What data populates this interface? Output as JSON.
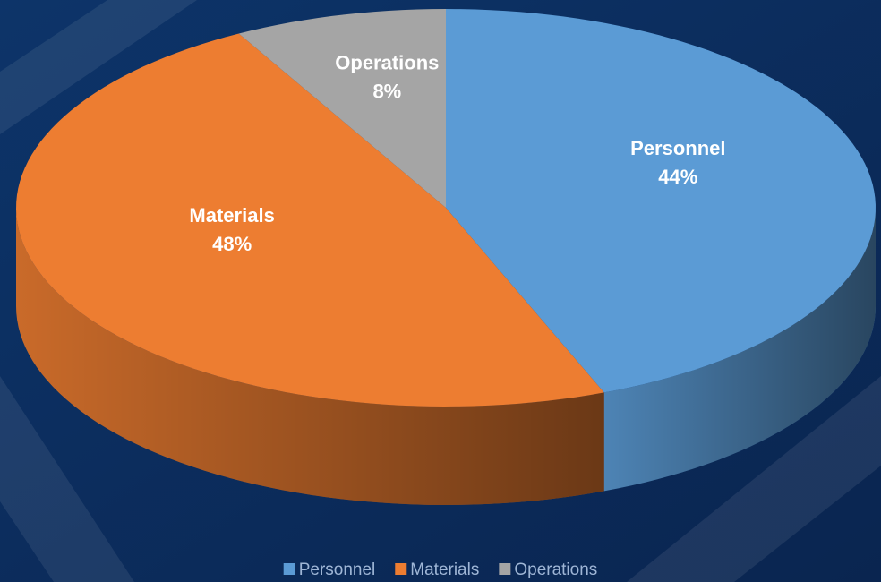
{
  "chart_data": {
    "type": "pie",
    "categories": [
      "Personnel",
      "Materials",
      "Operations"
    ],
    "values": [
      44,
      48,
      8
    ],
    "value_labels": [
      "44%",
      "48%",
      "8%"
    ],
    "colors": [
      "#5b9bd5",
      "#ed7d31",
      "#a5a5a5"
    ],
    "legend": "bottom"
  }
}
